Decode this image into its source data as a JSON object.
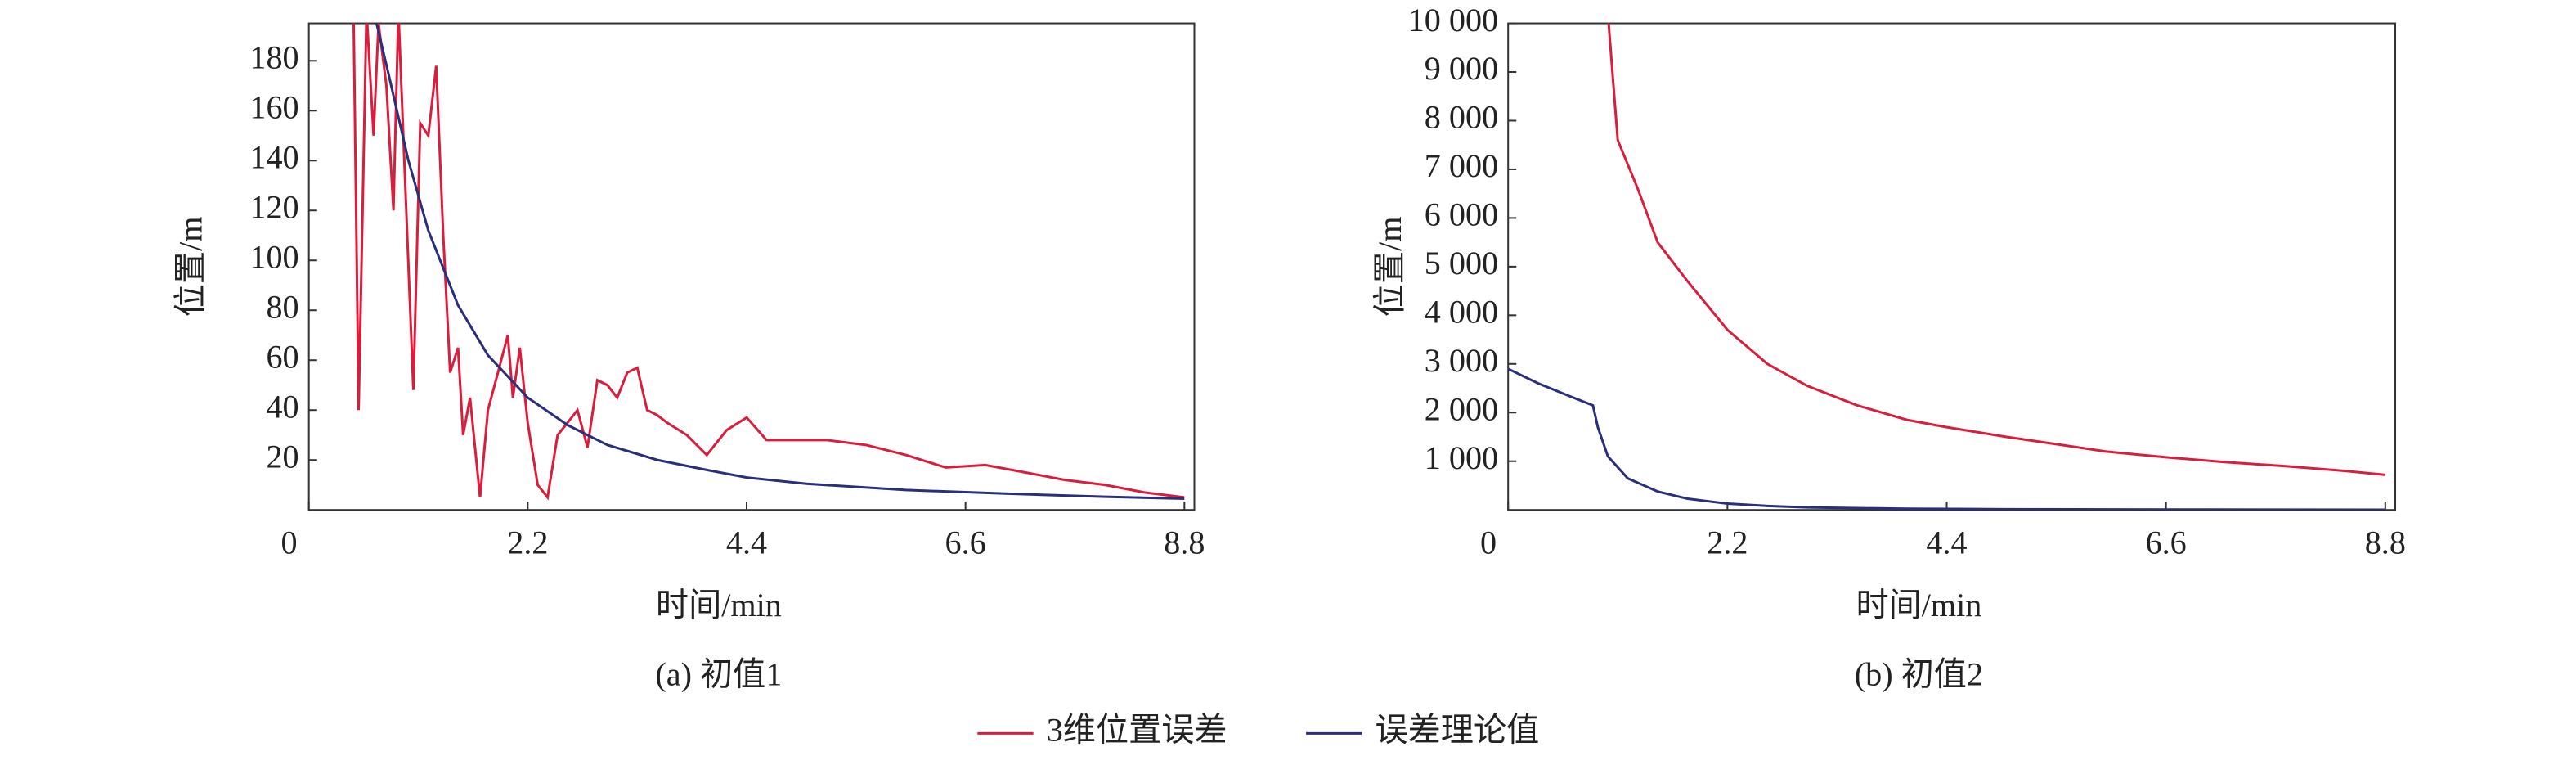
{
  "chart_data": [
    {
      "type": "line",
      "caption": "(a) 初值1",
      "xlabel": "时间/min",
      "ylabel": "位置/m",
      "xlim": [
        0,
        8.9
      ],
      "xticks": [
        0,
        2.2,
        4.4,
        6.6,
        8.8
      ],
      "ylim": [
        0,
        195
      ],
      "yticks": [
        20,
        40,
        60,
        80,
        100,
        120,
        140,
        160,
        180
      ],
      "series": [
        {
          "name": "3维位置误差",
          "color": "#d81e3c",
          "x": [
            0.45,
            0.5,
            0.58,
            0.65,
            0.7,
            0.78,
            0.85,
            0.9,
            0.95,
            1.05,
            1.12,
            1.2,
            1.28,
            1.35,
            1.42,
            1.5,
            1.55,
            1.62,
            1.72,
            1.8,
            1.9,
            2.0,
            2.05,
            2.12,
            2.2,
            2.3,
            2.4,
            2.5,
            2.6,
            2.7,
            2.8,
            2.9,
            3.0,
            3.1,
            3.2,
            3.3,
            3.4,
            3.5,
            3.6,
            3.8,
            4.0,
            4.2,
            4.4,
            4.6,
            4.8,
            5.2,
            5.6,
            6.0,
            6.4,
            6.8,
            7.2,
            7.6,
            8.0,
            8.4,
            8.8
          ],
          "values": [
            195,
            40,
            200,
            150,
            195,
            170,
            120,
            200,
            150,
            48,
            155,
            150,
            178,
            110,
            55,
            65,
            30,
            45,
            5,
            40,
            55,
            70,
            45,
            65,
            35,
            10,
            5,
            30,
            35,
            40,
            25,
            52,
            50,
            45,
            55,
            57,
            40,
            38,
            35,
            30,
            22,
            32,
            37,
            28,
            28,
            28,
            26,
            22,
            17,
            18,
            15,
            12,
            10,
            7,
            5
          ]
        },
        {
          "name": "误差理论值",
          "color": "#2b2f7a",
          "x": [
            0.65,
            0.8,
            1.0,
            1.2,
            1.5,
            1.8,
            2.2,
            2.6,
            3.0,
            3.5,
            4.0,
            4.4,
            5.0,
            6.0,
            7.0,
            8.0,
            8.8
          ],
          "values": [
            200,
            175,
            140,
            112,
            82,
            62,
            45,
            34,
            26,
            20,
            16,
            13,
            10.5,
            8,
            6.5,
            5.3,
            4.5
          ]
        }
      ]
    },
    {
      "type": "line",
      "caption": "(b) 初值2",
      "xlabel": "时间/min",
      "ylabel": "位置/m",
      "xlim": [
        0,
        8.9
      ],
      "xticks": [
        0,
        2.2,
        4.4,
        6.6,
        8.8
      ],
      "ylim": [
        0,
        10000
      ],
      "yticks": [
        {
          "value": 1000,
          "label": "1 000"
        },
        {
          "value": 2000,
          "label": "2 000"
        },
        {
          "value": 3000,
          "label": "3 000"
        },
        {
          "value": 4000,
          "label": "4 000"
        },
        {
          "value": 5000,
          "label": "5 000"
        },
        {
          "value": 6000,
          "label": "6 000"
        },
        {
          "value": 7000,
          "label": "7 000"
        },
        {
          "value": 8000,
          "label": "8 000"
        },
        {
          "value": 9000,
          "label": "9 000"
        },
        {
          "value": 10000,
          "label": "10 000"
        }
      ],
      "series": [
        {
          "name": "3维位置误差",
          "color": "#d81e3c",
          "x": [
            1.0,
            1.1,
            1.3,
            1.5,
            1.8,
            2.2,
            2.6,
            3.0,
            3.5,
            4.0,
            4.4,
            5.0,
            5.5,
            6.0,
            6.6,
            7.2,
            7.8,
            8.4,
            8.8
          ],
          "values": [
            10200,
            7600,
            6600,
            5500,
            4700,
            3700,
            3000,
            2550,
            2150,
            1850,
            1700,
            1500,
            1350,
            1200,
            1080,
            980,
            900,
            800,
            720
          ]
        },
        {
          "name": "误差理论值",
          "color": "#2b2f7a",
          "x": [
            0,
            0.3,
            0.6,
            0.85,
            0.9,
            1.0,
            1.2,
            1.5,
            1.8,
            2.2,
            2.6,
            3.0,
            4.0,
            5.0,
            6.0,
            7.0,
            8.8
          ],
          "values": [
            2900,
            2600,
            2350,
            2150,
            1700,
            1100,
            650,
            380,
            230,
            130,
            80,
            50,
            25,
            15,
            10,
            7,
            5
          ]
        }
      ]
    }
  ]
}
